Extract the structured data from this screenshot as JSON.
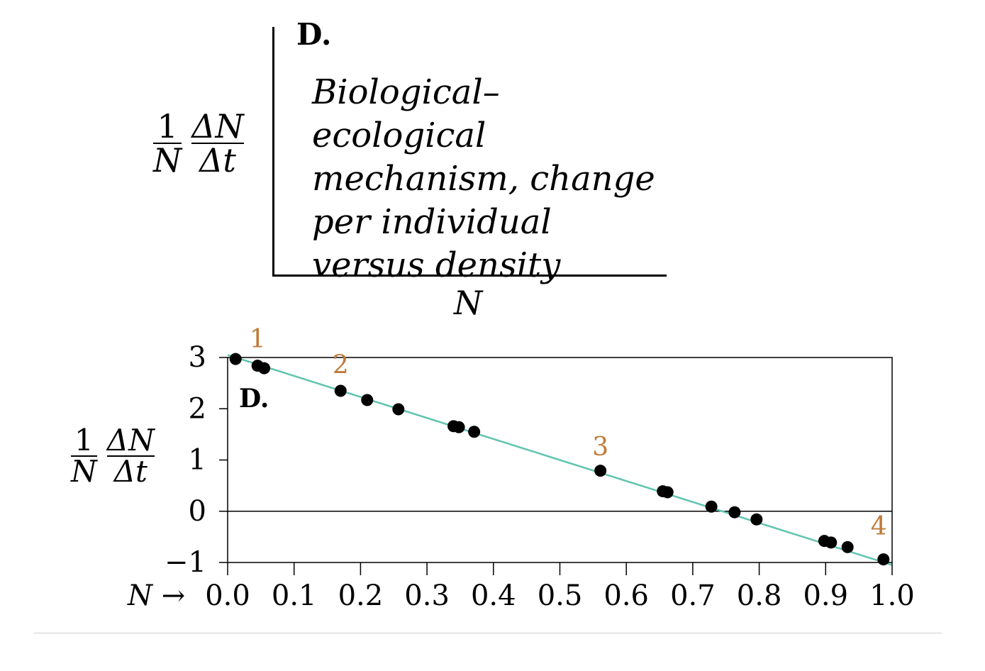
{
  "top_panel": {
    "label": "D.",
    "description_lines": [
      "Biological–ecological",
      "mechanism, change",
      "per individual",
      "versus density"
    ],
    "x_axis_label": "N",
    "y_axis_label": {
      "frac1_num": "1",
      "frac1_den": "N",
      "frac2_num": "ΔN",
      "frac2_den": "Δt"
    }
  },
  "chart_data": {
    "type": "scatter",
    "panel_label": "D.",
    "xlabel": "N →",
    "ylabel": {
      "frac1_num": "1",
      "frac1_den": "N",
      "frac2_num": "ΔN",
      "frac2_den": "Δt"
    },
    "xlim": [
      0.0,
      1.0
    ],
    "ylim": [
      -1,
      3
    ],
    "x_ticks": [
      "0.0",
      "0.1",
      "0.2",
      "0.3",
      "0.4",
      "0.5",
      "0.6",
      "0.7",
      "0.8",
      "0.9",
      "1.0"
    ],
    "y_ticks": [
      "3",
      "2",
      "1",
      "0",
      "−1"
    ],
    "y_tick_values": [
      3,
      2,
      1,
      0,
      -1
    ],
    "zero_line": true,
    "colors": {
      "fit_line": "#5fc4b0",
      "points": "#000000",
      "annotations": "#c07a3a"
    },
    "fit_line": {
      "x": [
        0.0,
        1.0
      ],
      "y": [
        3.05,
        -1.05
      ]
    },
    "points": [
      {
        "x": 0.012,
        "y": 2.97
      },
      {
        "x": 0.045,
        "y": 2.84
      },
      {
        "x": 0.055,
        "y": 2.79
      },
      {
        "x": 0.17,
        "y": 2.35
      },
      {
        "x": 0.21,
        "y": 2.17
      },
      {
        "x": 0.257,
        "y": 1.99
      },
      {
        "x": 0.34,
        "y": 1.66
      },
      {
        "x": 0.348,
        "y": 1.64
      },
      {
        "x": 0.371,
        "y": 1.55
      },
      {
        "x": 0.561,
        "y": 0.79
      },
      {
        "x": 0.655,
        "y": 0.39
      },
      {
        "x": 0.662,
        "y": 0.37
      },
      {
        "x": 0.728,
        "y": 0.09
      },
      {
        "x": 0.763,
        "y": -0.02
      },
      {
        "x": 0.796,
        "y": -0.16
      },
      {
        "x": 0.898,
        "y": -0.58
      },
      {
        "x": 0.908,
        "y": -0.61
      },
      {
        "x": 0.933,
        "y": -0.7
      },
      {
        "x": 0.987,
        "y": -0.94
      }
    ],
    "annotations": [
      {
        "text": "1",
        "x": 0.045,
        "y": 3.35
      },
      {
        "text": "2",
        "x": 0.17,
        "y": 2.85
      },
      {
        "text": "3",
        "x": 0.561,
        "y": 1.25
      },
      {
        "text": "4",
        "x": 0.98,
        "y": -0.3
      }
    ]
  }
}
